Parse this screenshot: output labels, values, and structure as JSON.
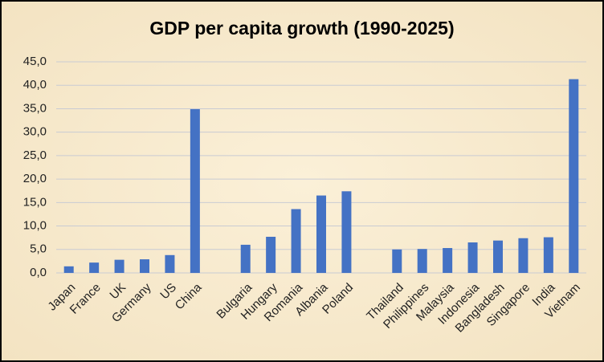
{
  "chart_data": {
    "type": "bar",
    "title": "GDP per capita growth (1990-2025)",
    "categories": [
      "Japan",
      "France",
      "UK",
      "Germany",
      "US",
      "China",
      null,
      "Bulgaria",
      "Hungary",
      "Romania",
      "Albania",
      "Poland",
      null,
      "Thailand",
      "Philippines",
      "Malaysia",
      "Indonesia",
      "Bangladesh",
      "Singapore",
      "India",
      "Vietnam"
    ],
    "values": [
      1.4,
      2.2,
      2.8,
      2.9,
      3.8,
      34.9,
      null,
      6.0,
      7.7,
      13.6,
      16.5,
      17.4,
      null,
      5.0,
      5.1,
      5.3,
      6.5,
      6.9,
      7.4,
      7.6,
      41.3
    ],
    "color": "#4472c4",
    "ylim": [
      0,
      45
    ],
    "yticks": [
      {
        "value": 0,
        "label": "0,0"
      },
      {
        "value": 5,
        "label": "5,0"
      },
      {
        "value": 10,
        "label": "10,0"
      },
      {
        "value": 15,
        "label": "15,0"
      },
      {
        "value": 20,
        "label": "20,0"
      },
      {
        "value": 25,
        "label": "25,0"
      },
      {
        "value": 30,
        "label": "30,0"
      },
      {
        "value": 35,
        "label": "35,0"
      },
      {
        "value": 40,
        "label": "40,0"
      },
      {
        "value": 45,
        "label": "45,0"
      }
    ],
    "grid": true
  }
}
